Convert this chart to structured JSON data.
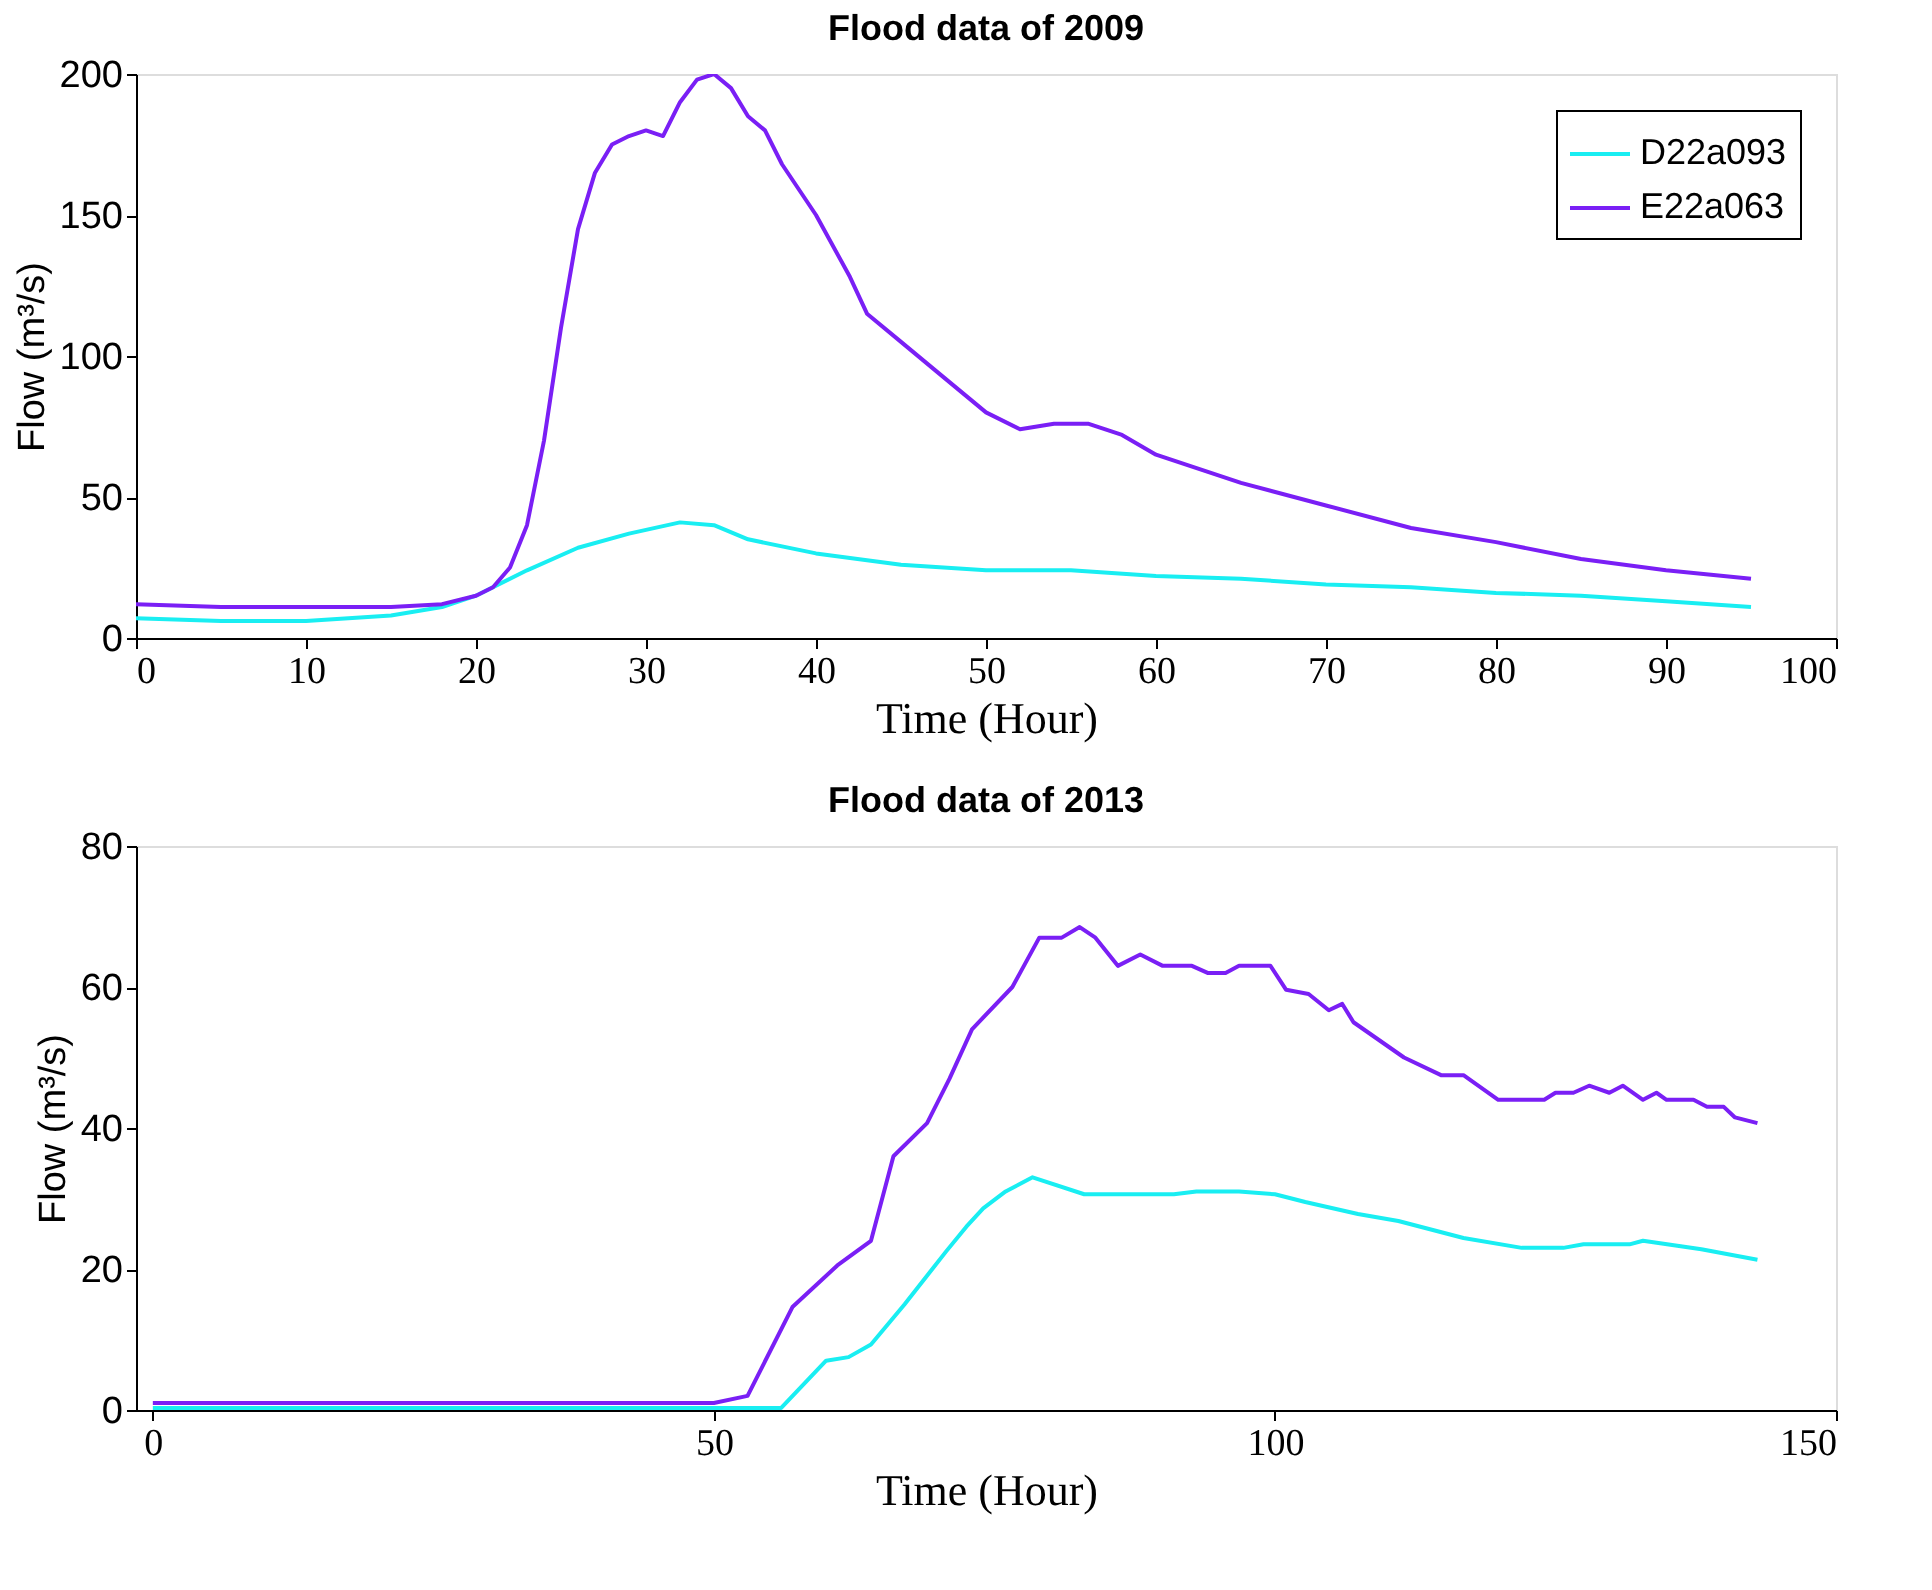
{
  "chart_data": [
    {
      "type": "line",
      "title": "Flood data of 2009",
      "xlabel": "Time (Hour)",
      "ylabel": "Flow (m³/s)",
      "xlim": [
        0,
        100
      ],
      "xticks": [
        0,
        10,
        20,
        30,
        40,
        50,
        60,
        70,
        80,
        90,
        100
      ],
      "ylim": [
        0,
        200
      ],
      "yticks": [
        0,
        50,
        100,
        150,
        200
      ],
      "grid": false,
      "legend": "top right",
      "line_style": "solid",
      "marker": "none",
      "series": [
        {
          "name": "D22a093",
          "color": "#19eef2",
          "x": [
            0,
            5,
            10,
            15,
            18,
            20,
            23,
            26,
            29,
            32,
            34,
            36,
            40,
            45,
            50,
            55,
            60,
            65,
            70,
            75,
            80,
            85,
            90,
            95
          ],
          "values": [
            7,
            6,
            6,
            8,
            11,
            15,
            24,
            32,
            37,
            41,
            40,
            35,
            30,
            26,
            24,
            24,
            22,
            21,
            19,
            18,
            16,
            15,
            13,
            11
          ]
        },
        {
          "name": "E22a063",
          "color": "#7a1ff5",
          "x": [
            0,
            5,
            10,
            15,
            18,
            20,
            21,
            22,
            23,
            24,
            25,
            26,
            27,
            28,
            29,
            30,
            31,
            32,
            33,
            34,
            35,
            36,
            37,
            38,
            40,
            42,
            43,
            45,
            47,
            50,
            52,
            54,
            56,
            58,
            60,
            65,
            70,
            75,
            80,
            85,
            90,
            95
          ],
          "values": [
            12,
            11,
            11,
            11,
            12,
            15,
            18,
            25,
            40,
            70,
            110,
            145,
            165,
            175,
            178,
            180,
            178,
            190,
            198,
            200,
            195,
            185,
            180,
            168,
            150,
            128,
            115,
            105,
            95,
            80,
            74,
            76,
            76,
            72,
            65,
            55,
            47,
            39,
            34,
            28,
            24,
            21
          ]
        }
      ]
    },
    {
      "type": "line",
      "title": "Flood data of 2013",
      "xlabel": "Time (Hour)",
      "ylabel": "Flow (m³/s)",
      "xlim": [
        -1.5,
        150
      ],
      "xticks": [
        0,
        50,
        100,
        150
      ],
      "ylim": [
        0,
        80
      ],
      "yticks": [
        0,
        20,
        40,
        60,
        80
      ],
      "grid": false,
      "legend": "top right",
      "line_style": "solid",
      "marker": "none",
      "series": [
        {
          "name": "D22a093",
          "color": "#19eef2",
          "x": [
            0,
            20,
            40,
            56,
            60,
            62,
            64,
            67,
            70.7,
            72.5,
            74,
            76,
            78.4,
            83,
            91,
            93,
            96.8,
            100,
            102.7,
            107.4,
            111,
            116.8,
            122,
            125.7,
            127.5,
            131.6,
            132.8,
            138,
            143
          ],
          "values": [
            0.3,
            0.3,
            0.3,
            0.3,
            7,
            7.5,
            9.3,
            15,
            22.5,
            26,
            28.6,
            31,
            33,
            30.6,
            30.6,
            31,
            31,
            30.6,
            29.5,
            27.8,
            26.8,
            24.4,
            23,
            23,
            23.5,
            23.5,
            24,
            22.8,
            21.3
          ]
        },
        {
          "name": "E22a063",
          "color": "#7a1ff5",
          "x": [
            0,
            20,
            40,
            50,
            53,
            57,
            61,
            64,
            66,
            69,
            71,
            73,
            76.6,
            79,
            81,
            82.6,
            84,
            86,
            88,
            90,
            92.6,
            94,
            95.6,
            96.8,
            99.6,
            101,
            103,
            104.8,
            106,
            107,
            111.5,
            114.8,
            116.8,
            119.9,
            124,
            125,
            126.6,
            128,
            129.8,
            131,
            132.8,
            134,
            134.9,
            137.3,
            138.5,
            140,
            141,
            143
          ],
          "values": [
            1,
            1,
            1,
            1,
            2,
            14.6,
            20.5,
            24,
            36,
            40.7,
            47,
            54,
            60,
            67,
            67,
            68.5,
            67,
            63,
            64.6,
            63,
            63,
            62,
            62,
            63,
            63,
            59.6,
            59,
            56.7,
            57.6,
            55,
            50,
            47.5,
            47.5,
            44,
            44,
            45,
            45,
            46,
            45,
            46,
            44,
            45,
            44,
            44,
            43,
            43,
            41.5,
            40.7
          ]
        }
      ]
    }
  ]
}
